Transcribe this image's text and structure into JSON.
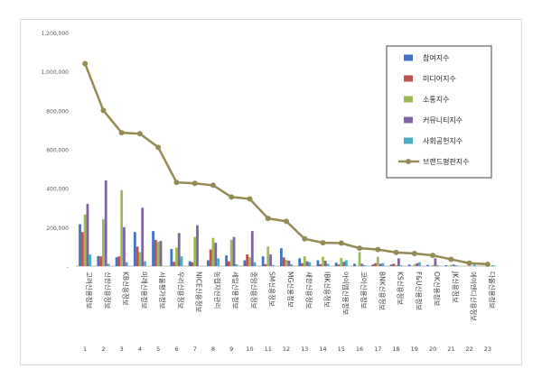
{
  "chart_data": {
    "type": "bar",
    "title": "",
    "xlabel": "",
    "ylabel": "",
    "ylim": [
      0,
      1200000
    ],
    "yticks": [
      "-",
      "200,000",
      "400,000",
      "600,000",
      "800,000",
      "1,000,000",
      "1,200,000"
    ],
    "grid": false,
    "legend_position": "top-right",
    "categories": [
      "1",
      "2",
      "3",
      "4",
      "5",
      "6",
      "7",
      "8",
      "9",
      "10",
      "11",
      "12",
      "13",
      "14",
      "15",
      "16",
      "17",
      "18",
      "19",
      "20",
      "21",
      "22",
      "23"
    ],
    "category_labels": [
      "고려신용정보",
      "신한신용정보",
      "KB신용정보",
      "미래신용정보",
      "서울평가정보",
      "우리신용정보",
      "NICE신용정보",
      "농협자산관리",
      "세일신용정보",
      "중앙신용정보",
      "SM신용정보",
      "MG신용정보",
      "새한신용정보",
      "IBK신용정보",
      "아이엠신용정보",
      "코아신용정보",
      "BNK신용정보",
      "KS신용정보",
      "F&U신용정보",
      "OK신용정보",
      "JK신용정보",
      "에이엔디신용정보",
      "다올신용정보"
    ],
    "series": [
      {
        "name": "참여지수",
        "kind": "bar",
        "color": "#4472C4",
        "values": [
          215000,
          52000,
          45000,
          175000,
          180000,
          88000,
          25000,
          30000,
          55000,
          30000,
          50000,
          92000,
          40000,
          30000,
          18000,
          12000,
          8000,
          8000,
          8000,
          6000,
          5000,
          0,
          0
        ]
      },
      {
        "name": "미디어지수",
        "kind": "bar",
        "color": "#C0504D",
        "values": [
          175000,
          50000,
          50000,
          100000,
          135000,
          22000,
          20000,
          85000,
          25000,
          60000,
          10000,
          45000,
          15000,
          10000,
          8000,
          0,
          15000,
          12000,
          0,
          0,
          0,
          0,
          0
        ]
      },
      {
        "name": "소통지수",
        "kind": "bar",
        "color": "#9BBB59",
        "values": [
          265000,
          240000,
          390000,
          72000,
          125000,
          95000,
          150000,
          145000,
          135000,
          45000,
          100000,
          32000,
          50000,
          48000,
          42000,
          72000,
          48000,
          6000,
          10000,
          5000,
          6000,
          0,
          0
        ]
      },
      {
        "name": "커뮤니티지수",
        "kind": "bar",
        "color": "#8064A2",
        "values": [
          320000,
          440000,
          200000,
          300000,
          130000,
          170000,
          210000,
          120000,
          150000,
          180000,
          60000,
          28000,
          25000,
          28000,
          22000,
          12000,
          12000,
          40000,
          15000,
          40000,
          8000,
          0,
          0
        ]
      },
      {
        "name": "사회공헌지수",
        "kind": "bar",
        "color": "#4BACC6",
        "values": [
          60000,
          12000,
          20000,
          25000,
          0,
          50000,
          0,
          40000,
          10000,
          20000,
          5000,
          10000,
          20000,
          12000,
          30000,
          5000,
          15000,
          5000,
          20000,
          5000,
          5000,
          8000,
          5000
        ]
      },
      {
        "name": "브랜드평판지수",
        "kind": "line",
        "color": "#948A54",
        "values": [
          1040000,
          800000,
          685000,
          680000,
          610000,
          430000,
          425000,
          415000,
          355000,
          345000,
          245000,
          230000,
          140000,
          120000,
          118000,
          92000,
          85000,
          70000,
          65000,
          55000,
          35000,
          15000,
          10000
        ]
      }
    ]
  }
}
